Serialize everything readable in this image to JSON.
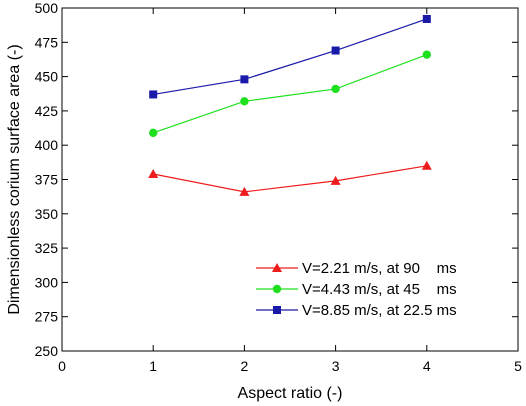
{
  "chart_data": {
    "type": "line",
    "title": "",
    "xlabel": "Aspect ratio (-)",
    "ylabel": "Dimensionless corium surface area (-)",
    "xlim": [
      0,
      5
    ],
    "ylim": [
      250,
      500
    ],
    "xticks": [
      0,
      1,
      2,
      3,
      4,
      5
    ],
    "yticks": [
      250,
      275,
      300,
      325,
      350,
      375,
      400,
      425,
      450,
      475,
      500
    ],
    "grid": false,
    "legend_position": "bottom-right",
    "series": [
      {
        "name": "V=2.21 m/s, at 90    ms",
        "color": "#ee1c1c",
        "marker": "triangle",
        "x": [
          1,
          2,
          3,
          4
        ],
        "y": [
          379,
          366,
          374,
          385
        ]
      },
      {
        "name": "V=4.43 m/s, at 45    ms",
        "color": "#1ee01e",
        "marker": "circle",
        "x": [
          1,
          2,
          3,
          4
        ],
        "y": [
          409,
          432,
          441,
          466
        ]
      },
      {
        "name": "V=8.85 m/s, at 22.5 ms",
        "color": "#1a1aa8",
        "marker": "square",
        "x": [
          1,
          2,
          3,
          4
        ],
        "y": [
          437,
          448,
          469,
          492
        ]
      }
    ]
  }
}
